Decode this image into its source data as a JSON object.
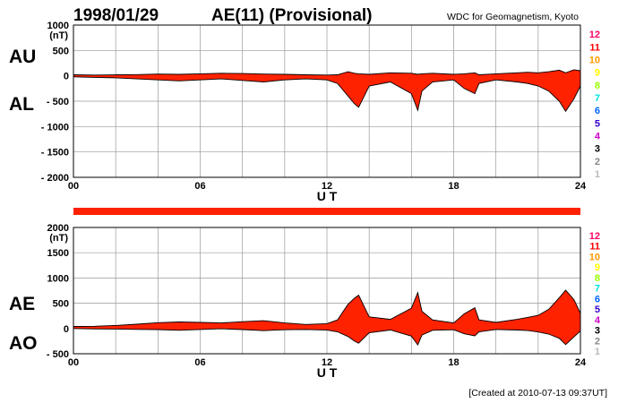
{
  "header": {
    "date": "1998/01/29",
    "title": "AE(11) (Provisional)",
    "source": "WDC for Geomagnetism, Kyoto"
  },
  "footer": {
    "created": "[Created at 2010-07-13 09:37UT]"
  },
  "colors": {
    "fill": "#ff2200",
    "grid": "#999999",
    "axis": "#000000",
    "status_bar": "#ff2200",
    "station_count_colors": {
      "12": "#ff0066",
      "11": "#ff0000",
      "10": "#ff9900",
      "9": "#ffff00",
      "8": "#99ff00",
      "7": "#00e0e0",
      "6": "#0066ff",
      "5": "#3300cc",
      "4": "#cc00cc",
      "3": "#000000",
      "2": "#888888",
      "1": "#bbbbbb"
    }
  },
  "station_count_legend": [
    "12",
    "11",
    "10",
    "9",
    "8",
    "7",
    "6",
    "5",
    "4",
    "3",
    "2",
    "1"
  ],
  "chart_data": [
    {
      "type": "area",
      "panel": "top",
      "series": [
        {
          "name": "AU",
          "x": [
            0,
            1,
            2,
            3,
            4,
            5,
            6,
            7,
            8,
            9,
            10,
            11,
            12,
            12.5,
            13,
            13.3,
            13.5,
            14,
            15,
            16,
            16.3,
            16.5,
            17,
            18,
            18.5,
            19,
            19.2,
            20,
            21,
            21.5,
            22,
            22.5,
            23,
            23.3,
            23.7,
            24
          ],
          "values": [
            20,
            15,
            20,
            25,
            35,
            30,
            40,
            50,
            45,
            35,
            30,
            20,
            15,
            20,
            80,
            50,
            40,
            30,
            60,
            50,
            30,
            40,
            50,
            30,
            40,
            60,
            20,
            40,
            60,
            70,
            60,
            80,
            110,
            60,
            120,
            100
          ]
        },
        {
          "name": "AL",
          "x": [
            0,
            1,
            2,
            3,
            4,
            5,
            6,
            7,
            8,
            9,
            10,
            11,
            12,
            12.5,
            13,
            13.3,
            13.5,
            14,
            15,
            16,
            16.3,
            16.5,
            17,
            18,
            18.5,
            19,
            19.2,
            20,
            21,
            21.5,
            22,
            22.5,
            23,
            23.3,
            23.7,
            24
          ],
          "values": [
            -20,
            -30,
            -40,
            -60,
            -80,
            -100,
            -80,
            -60,
            -90,
            -120,
            -80,
            -60,
            -80,
            -150,
            -400,
            -550,
            -620,
            -200,
            -120,
            -350,
            -680,
            -300,
            -120,
            -80,
            -250,
            -350,
            -150,
            -80,
            -120,
            -150,
            -200,
            -300,
            -500,
            -700,
            -450,
            -200
          ]
        }
      ],
      "ylabels": [
        "AU",
        "AL"
      ],
      "yunit": "(nT)",
      "xlabel": "U T",
      "xlim": [
        0,
        24
      ],
      "ylim": [
        -2000,
        1000
      ],
      "yticks": [
        1000,
        500,
        0,
        -500,
        -1000,
        -1500,
        -2000
      ],
      "ytick_labels": [
        "1000",
        "500",
        "0",
        "- 500",
        "- 1000",
        "- 1500",
        "- 2000"
      ],
      "xticks": [
        0,
        6,
        12,
        18,
        24
      ],
      "xtick_labels": [
        "00",
        "06",
        "12",
        "18",
        "24"
      ],
      "grid": true
    },
    {
      "type": "area",
      "panel": "bottom",
      "series": [
        {
          "name": "AE",
          "x": [
            0,
            1,
            2,
            3,
            4,
            5,
            6,
            7,
            8,
            9,
            10,
            11,
            12,
            12.5,
            13,
            13.3,
            13.5,
            14,
            15,
            16,
            16.3,
            16.5,
            17,
            18,
            18.5,
            19,
            19.2,
            20,
            21,
            21.5,
            22,
            22.5,
            23,
            23.3,
            23.7,
            24
          ],
          "values": [
            40,
            45,
            60,
            85,
            115,
            130,
            120,
            110,
            135,
            155,
            110,
            80,
            95,
            170,
            480,
            600,
            660,
            230,
            180,
            400,
            710,
            340,
            170,
            110,
            290,
            410,
            170,
            120,
            180,
            220,
            260,
            380,
            610,
            760,
            570,
            300
          ]
        },
        {
          "name": "AO",
          "x": [
            0,
            1,
            2,
            3,
            4,
            5,
            6,
            7,
            8,
            9,
            10,
            11,
            12,
            12.5,
            13,
            13.3,
            13.5,
            14,
            15,
            16,
            16.3,
            16.5,
            17,
            18,
            18.5,
            19,
            19.2,
            20,
            21,
            21.5,
            22,
            22.5,
            23,
            23.3,
            23.7,
            24
          ],
          "values": [
            0,
            -8,
            -10,
            -18,
            -22,
            -35,
            -20,
            -5,
            -22,
            -42,
            -25,
            -20,
            -32,
            -65,
            -160,
            -250,
            -290,
            -85,
            -30,
            -150,
            -325,
            -130,
            -35,
            -25,
            -105,
            -145,
            -65,
            -20,
            -30,
            -40,
            -70,
            -110,
            -195,
            -320,
            -165,
            -50
          ]
        }
      ],
      "ylabels": [
        "AE",
        "AO"
      ],
      "yunit": "(nT)",
      "xlabel": "U T",
      "xlim": [
        0,
        24
      ],
      "ylim": [
        -500,
        2000
      ],
      "yticks": [
        2000,
        1500,
        1000,
        500,
        0,
        -500
      ],
      "ytick_labels": [
        "2000",
        "1500",
        "1000",
        "500",
        "0",
        "- 500"
      ],
      "xticks": [
        0,
        6,
        12,
        18,
        24
      ],
      "xtick_labels": [
        "00",
        "06",
        "12",
        "18",
        "24"
      ],
      "grid": true
    }
  ]
}
